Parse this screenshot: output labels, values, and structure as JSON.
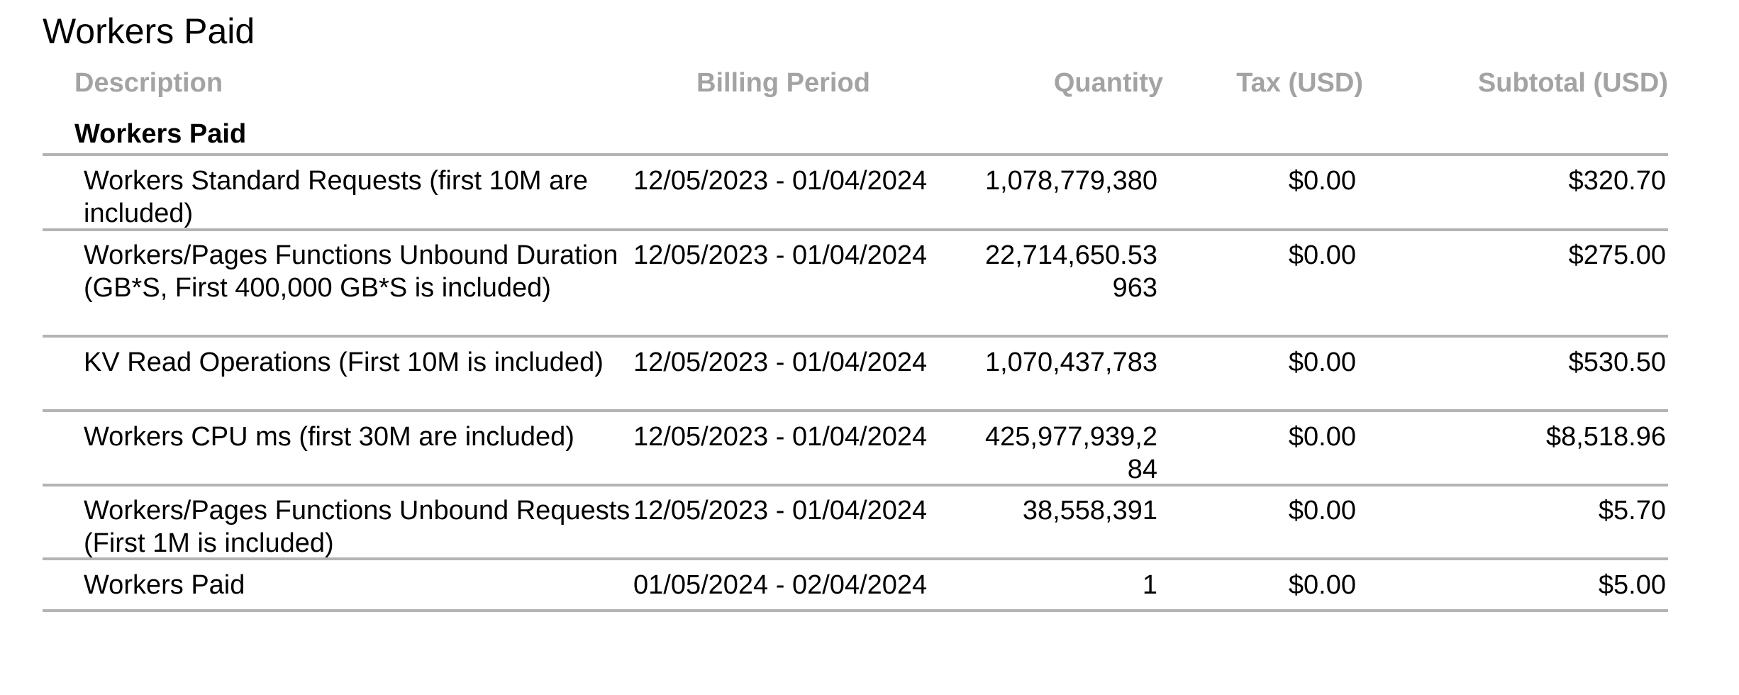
{
  "page": {
    "title": "Workers Paid"
  },
  "table": {
    "headers": {
      "description": "Description",
      "billing_period": "Billing Period",
      "quantity": "Quantity",
      "tax": "Tax (USD)",
      "subtotal": "Subtotal (USD)"
    },
    "section_title": "Workers Paid",
    "rows": [
      {
        "description": "Workers Standard Requests (first 10M are included)",
        "billing_period": "12/05/2023 - 01/04/2024",
        "quantity": "1,078,779,380",
        "tax": "$0.00",
        "subtotal": "$320.70"
      },
      {
        "description": "Workers/Pages Functions Unbound Duration (GB*S, First 400,000 GB*S is included)",
        "billing_period": "12/05/2023 - 01/04/2024",
        "quantity": "22,714,650.53963",
        "tax": "$0.00",
        "subtotal": "$275.00"
      },
      {
        "description": "KV Read Operations (First 10M is included)",
        "billing_period": "12/05/2023 - 01/04/2024",
        "quantity": "1,070,437,783",
        "tax": "$0.00",
        "subtotal": "$530.50"
      },
      {
        "description": "Workers CPU ms (first 30M are included)",
        "billing_period": "12/05/2023 - 01/04/2024",
        "quantity": "425,977,939,284",
        "tax": "$0.00",
        "subtotal": "$8,518.96"
      },
      {
        "description": "Workers/Pages Functions Unbound Requests (First 1M is included)",
        "billing_period": "12/05/2023 - 01/04/2024",
        "quantity": "38,558,391",
        "tax": "$0.00",
        "subtotal": "$5.70"
      },
      {
        "description": "Workers Paid",
        "billing_period": "01/05/2024 - 02/04/2024",
        "quantity": "1",
        "tax": "$0.00",
        "subtotal": "$5.00"
      }
    ]
  },
  "colors": {
    "header_text": "#a3a3a3",
    "rule": "#b4b4b4",
    "text": "#000000"
  }
}
